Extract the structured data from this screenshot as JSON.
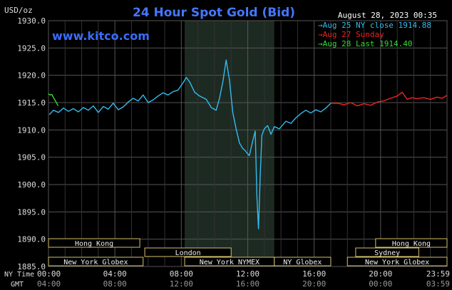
{
  "chart_data": {
    "type": "line",
    "title": "24 Hour Spot Gold (Bid)",
    "ylabel": "USD/oz",
    "date_label": "August 28, 2023 00:35",
    "watermark": "www.kitco.com",
    "ylim": [
      1885.0,
      1930.0
    ],
    "y_ticks": [
      "1930.0",
      "1925.0",
      "1920.0",
      "1915.0",
      "1910.0",
      "1905.0",
      "1900.0",
      "1895.0",
      "1890.0",
      "1885.0"
    ],
    "x_range_hours": [
      0,
      24
    ],
    "x_ticks_ny": [
      "00:00",
      "04:00",
      "08:00",
      "12:00",
      "16:00",
      "20:00",
      "23:59"
    ],
    "x_ticks_gmt": [
      "04:00",
      "08:00",
      "12:00",
      "16:00",
      "20:00",
      "00:00",
      "03:59"
    ],
    "x_row_labels": {
      "ny": "NY Time",
      "gmt": "GMT"
    },
    "legend": [
      {
        "label": "Aug 25 NY close 1914.88",
        "color": "#33bbee"
      },
      {
        "label": "Aug 27 Sunday",
        "color": "#ee2222"
      },
      {
        "label": "Aug 28 Last 1914.40",
        "color": "#33dd33"
      }
    ],
    "shaded_session_hours": [
      8.2,
      13.6
    ],
    "sessions": [
      {
        "label": "Hong Kong",
        "start": 0.0,
        "end": 5.5,
        "row": 0
      },
      {
        "label": "London",
        "start": 5.8,
        "end": 11.0,
        "row": 1
      },
      {
        "label": "New York Globex",
        "start": 0.0,
        "end": 5.7,
        "row": 2
      },
      {
        "label": "New York NYMEX",
        "start": 8.2,
        "end": 13.6,
        "row": 2
      },
      {
        "label": "NY Globex",
        "start": 13.6,
        "end": 17.0,
        "row": 2
      },
      {
        "label": "Hong Kong",
        "start": 19.7,
        "end": 24.0,
        "row": 0
      },
      {
        "label": "Sydney",
        "start": 18.5,
        "end": 22.3,
        "row": 1
      },
      {
        "label": "New York Globex",
        "start": 18.0,
        "end": 24.0,
        "row": 2
      }
    ],
    "series": [
      {
        "name": "Aug 25 NY close 1914.88",
        "color": "#33bbee",
        "x": [
          0.05,
          0.3,
          0.6,
          0.9,
          1.2,
          1.5,
          1.8,
          2.1,
          2.4,
          2.7,
          3.0,
          3.3,
          3.6,
          3.9,
          4.2,
          4.5,
          4.8,
          5.1,
          5.4,
          5.7,
          6.0,
          6.3,
          6.6,
          6.9,
          7.2,
          7.5,
          7.8,
          8.1,
          8.3,
          8.5,
          8.8,
          9.1,
          9.5,
          9.8,
          10.1,
          10.3,
          10.5,
          10.7,
          10.9,
          11.1,
          11.3,
          11.5,
          11.7,
          11.85,
          11.95,
          12.1,
          12.3,
          12.45,
          12.55,
          12.65,
          12.75,
          12.85,
          13.0,
          13.2,
          13.4,
          13.6,
          13.9,
          14.3,
          14.6,
          14.9,
          15.2,
          15.5,
          15.8,
          16.1,
          16.4,
          16.7,
          17.0
        ],
        "y": [
          1912.8,
          1913.6,
          1913.2,
          1914.0,
          1913.4,
          1913.9,
          1913.3,
          1914.1,
          1913.6,
          1914.4,
          1913.2,
          1914.3,
          1913.8,
          1914.9,
          1913.7,
          1914.2,
          1915.1,
          1915.8,
          1915.3,
          1916.4,
          1915.0,
          1915.5,
          1916.2,
          1916.8,
          1916.4,
          1917.0,
          1917.3,
          1918.6,
          1919.6,
          1918.8,
          1916.9,
          1916.2,
          1915.6,
          1914.1,
          1913.6,
          1915.8,
          1918.8,
          1922.8,
          1919.1,
          1913.2,
          1910.2,
          1907.6,
          1906.6,
          1906.2,
          1905.8,
          1905.3,
          1908.0,
          1909.8,
          1898.0,
          1891.9,
          1901.5,
          1909.0,
          1910.2,
          1910.8,
          1909.2,
          1910.6,
          1910.2,
          1911.6,
          1911.2,
          1912.2,
          1913.0,
          1913.6,
          1913.1,
          1913.7,
          1913.3,
          1914.0,
          1914.88
        ]
      },
      {
        "name": "Aug 27 Sunday",
        "color": "#ee2222",
        "x": [
          17.0,
          17.4,
          17.8,
          18.2,
          18.6,
          19.0,
          19.4,
          19.8,
          20.2,
          20.6,
          21.0,
          21.3,
          21.6,
          21.9,
          22.2,
          22.6,
          23.0,
          23.4,
          23.7,
          23.99
        ],
        "y": [
          1914.88,
          1914.9,
          1914.6,
          1915.0,
          1914.4,
          1914.8,
          1914.5,
          1915.1,
          1915.3,
          1915.8,
          1916.2,
          1916.9,
          1915.6,
          1915.9,
          1915.7,
          1915.9,
          1915.6,
          1916.0,
          1915.8,
          1916.3
        ]
      },
      {
        "name": "Aug 28 Last 1914.40",
        "color": "#33dd33",
        "x": [
          0.0,
          0.1,
          0.2,
          0.3,
          0.4,
          0.5,
          0.58
        ],
        "y": [
          1916.6,
          1916.4,
          1916.5,
          1915.9,
          1915.4,
          1914.9,
          1914.4
        ]
      }
    ]
  }
}
